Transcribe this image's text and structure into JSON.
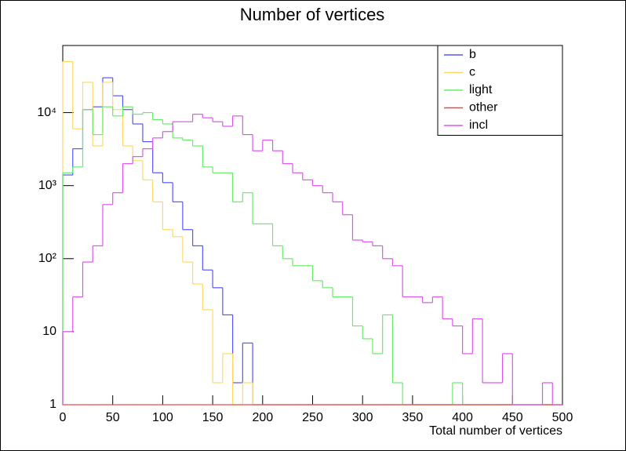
{
  "chart_data": {
    "type": "histogram",
    "title": "Number of vertices",
    "x_label": "Total number of vertices",
    "bins": [
      0,
      10,
      20,
      30,
      40,
      50,
      60,
      70,
      80,
      90,
      100,
      110,
      120,
      130,
      140,
      150,
      160,
      170,
      180,
      190,
      200,
      210,
      220,
      230,
      240,
      250,
      260,
      270,
      280,
      290,
      300,
      310,
      320,
      330,
      340,
      350,
      360,
      370,
      380,
      390,
      400,
      410,
      420,
      430,
      440,
      450,
      460,
      470,
      480,
      490,
      500
    ],
    "series": [
      {
        "name": "b",
        "color": "#5555ff",
        "values": [
          1400,
          3200,
          11000,
          12000,
          30000,
          17000,
          11000,
          7000,
          4000,
          1500,
          1100,
          600,
          250,
          150,
          70,
          40,
          17,
          2,
          7,
          0,
          0,
          0,
          0,
          0,
          0,
          0,
          0,
          0,
          0,
          0,
          0,
          0,
          0,
          0,
          0,
          0,
          0,
          0,
          0,
          0,
          0,
          0,
          0,
          0,
          0,
          0,
          0,
          0,
          0,
          0
        ]
      },
      {
        "name": "c",
        "color": "#ffd966",
        "values": [
          50000,
          6000,
          26000,
          3500,
          26000,
          11000,
          3500,
          2200,
          1200,
          600,
          250,
          200,
          90,
          45,
          20,
          2,
          5,
          0,
          2,
          0,
          0,
          0,
          0,
          0,
          0,
          0,
          0,
          0,
          0,
          0,
          0,
          0,
          0,
          0,
          0,
          0,
          0,
          0,
          0,
          0,
          0,
          0,
          0,
          0,
          0,
          0,
          0,
          0,
          0,
          0
        ]
      },
      {
        "name": "light",
        "color": "#66ee66",
        "values": [
          1500,
          1800,
          11000,
          5000,
          12000,
          9000,
          12000,
          9500,
          10000,
          8000,
          7000,
          4500,
          4200,
          3500,
          1800,
          1500,
          1500,
          600,
          800,
          300,
          300,
          150,
          100,
          80,
          80,
          50,
          40,
          30,
          30,
          12,
          8,
          5,
          17,
          2,
          0,
          0,
          0,
          0,
          0,
          2,
          0,
          0,
          0,
          0,
          0,
          0,
          0,
          0,
          0,
          0
        ]
      },
      {
        "name": "other",
        "color": "#ee4444",
        "values": [
          0,
          0,
          0,
          0,
          0,
          0,
          0,
          0,
          0,
          0,
          0,
          0,
          0,
          0,
          0,
          0,
          0,
          0,
          0,
          0,
          0,
          0,
          0,
          0,
          0,
          0,
          0,
          0,
          0,
          0,
          0,
          0,
          0,
          0,
          0,
          0,
          0,
          0,
          0,
          0,
          0,
          0,
          0,
          0,
          0,
          0,
          0,
          0,
          0,
          0
        ]
      },
      {
        "name": "incl",
        "color": "#dd55ee",
        "values": [
          10,
          30,
          90,
          150,
          550,
          800,
          2000,
          2500,
          3200,
          4500,
          5500,
          7500,
          7500,
          9500,
          8500,
          7500,
          6500,
          9000,
          5000,
          3000,
          4200,
          3000,
          2000,
          1500,
          1200,
          1000,
          800,
          600,
          400,
          180,
          170,
          150,
          100,
          80,
          30,
          30,
          25,
          30,
          15,
          12,
          5,
          15,
          2,
          2,
          5,
          1,
          0,
          0,
          2,
          0
        ]
      }
    ],
    "xlim": [
      0,
      500
    ],
    "xticks": [
      0,
      50,
      100,
      150,
      200,
      250,
      300,
      350,
      400,
      450,
      500
    ],
    "ylim": [
      1,
      83000
    ],
    "log_y": true,
    "yticks": [
      1,
      10,
      {
        "value": 100,
        "label": "10²"
      },
      {
        "value": 1000,
        "label": "10³"
      },
      {
        "value": 10000,
        "label": "10⁴"
      }
    ],
    "legend": "upper right"
  }
}
